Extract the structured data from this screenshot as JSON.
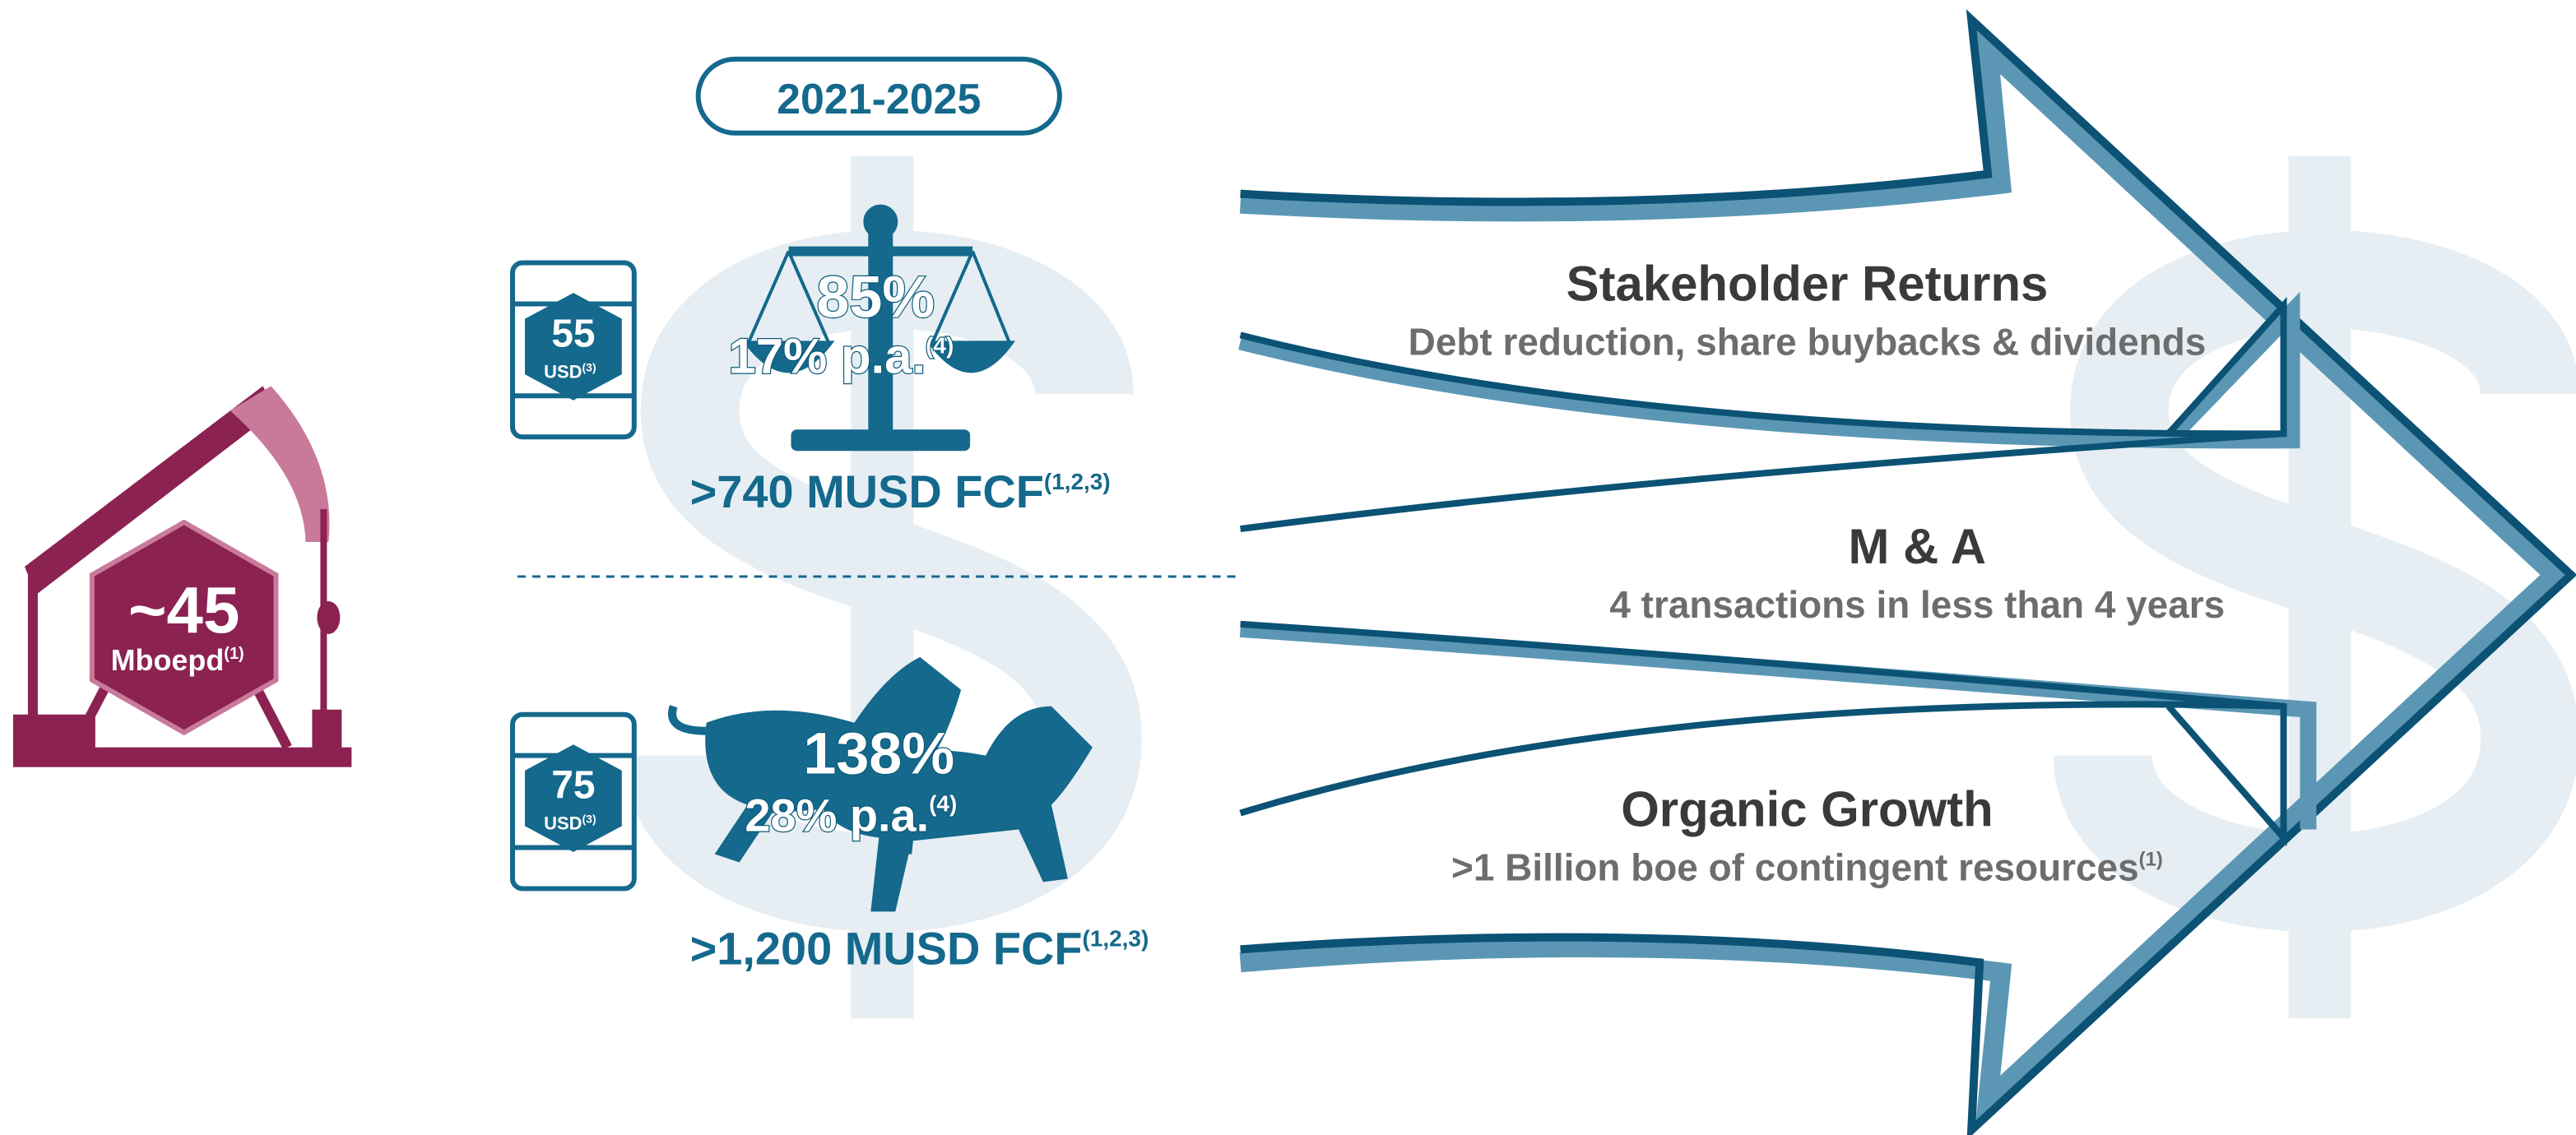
{
  "period": "2021-2025",
  "production": {
    "value": "~45",
    "unit": "Mboepd",
    "note": "(1)"
  },
  "scenarios": [
    {
      "oil_price": "55",
      "currency": "USD",
      "price_note": "(3)",
      "return_total": "85%",
      "return_annual": "17% p.a.",
      "return_note": "(4)",
      "fcf": ">740 MUSD FCF",
      "fcf_note": "(1,2,3)"
    },
    {
      "oil_price": "75",
      "currency": "USD",
      "price_note": "(3)",
      "return_total": "138%",
      "return_annual": "28% p.a.",
      "return_note": "(4)",
      "fcf": ">1,200 MUSD FCF",
      "fcf_note": "(1,2,3)"
    }
  ],
  "uses": [
    {
      "title": "Stakeholder Returns",
      "description": "Debt reduction, share buybacks & dividends"
    },
    {
      "title": "M & A",
      "description": "4 transactions in less than 4 years"
    },
    {
      "title": "Organic Growth",
      "description": ">1 Billion boe of contingent resources",
      "note": "(1)"
    }
  ]
}
